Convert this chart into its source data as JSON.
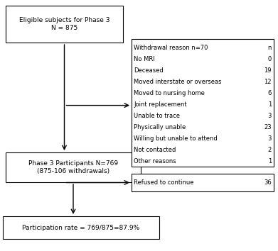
{
  "box1_text": "Eligible subjects for Phase 3\nN = 875",
  "box2_text": "Phase 3 Participants N=769\n(875-106 withdrawals)",
  "box3_text": "Participation rate = 769/875=87.9%",
  "withdrawal_box_header": "Withdrawal reason n=70",
  "withdrawal_box_header_right": "n",
  "withdrawal_reasons": [
    [
      "No MRI",
      "0"
    ],
    [
      "Deceased",
      "19"
    ],
    [
      "Moved interstate or overseas",
      "12"
    ],
    [
      "Moved to nursing home",
      "6"
    ],
    [
      "Joint replacement",
      "1"
    ],
    [
      "Unable to trace",
      "3"
    ],
    [
      "Physically unable",
      "23"
    ],
    [
      "Willing but unable to attend",
      "3"
    ],
    [
      "Not contacted",
      "2"
    ],
    [
      "Other reasons",
      "1"
    ]
  ],
  "refused_label": "Refused to continue",
  "refused_value": "36",
  "bg_color": "#ffffff",
  "box_edge_color": "#000000",
  "arrow_color": "#000000",
  "font_size": 6.5
}
